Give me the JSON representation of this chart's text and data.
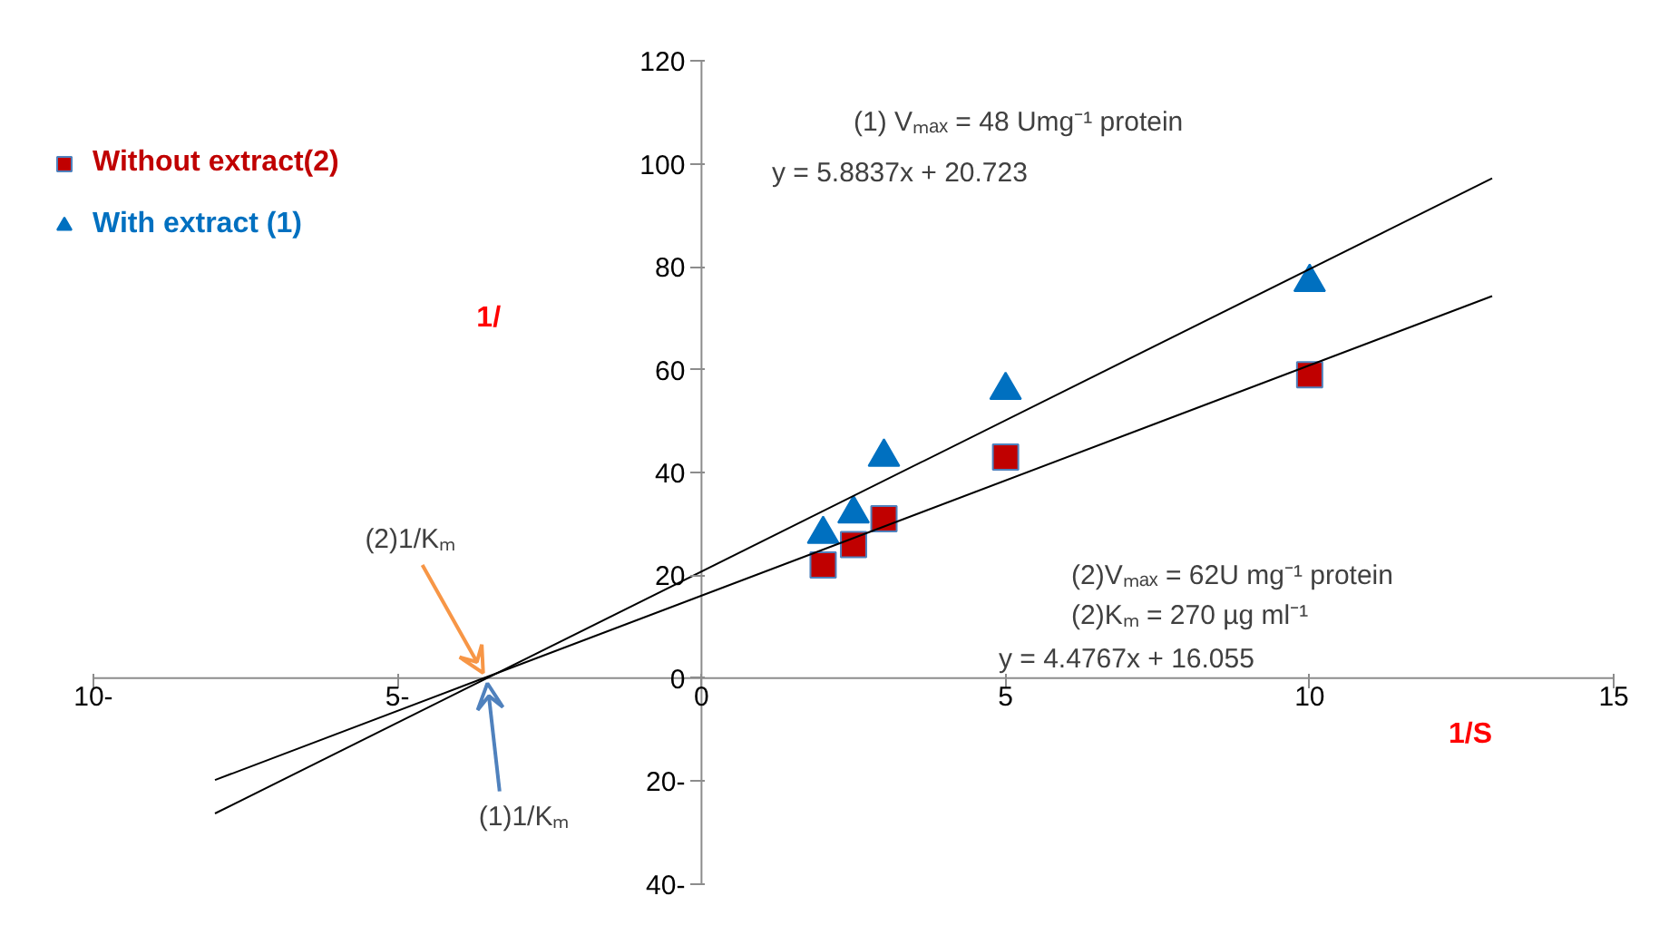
{
  "chart_data": {
    "type": "scatter",
    "xlabel": "1/S",
    "ylabel": "1/",
    "legend": "top left",
    "grid": false,
    "xlim": [
      -10,
      15
    ],
    "ylim": [
      -40,
      120
    ],
    "xticks": [
      {
        "value": -10,
        "label": "10-"
      },
      {
        "value": -5,
        "label": "5-"
      },
      0,
      5,
      10,
      15
    ],
    "yticks": [
      {
        "value": -40,
        "label": "40-"
      },
      {
        "value": -20,
        "label": "20-"
      },
      0,
      20,
      40,
      60,
      80,
      100,
      120
    ],
    "series": [
      {
        "name": "Without extract(2)",
        "color": "#c00000",
        "marker": "square",
        "x": [
          2,
          2.5,
          3,
          5,
          10
        ],
        "values": [
          22,
          26,
          31,
          43,
          59
        ]
      },
      {
        "name": "With extract (1)",
        "color": "#0070c0",
        "marker": "triangle",
        "x": [
          2,
          2.5,
          3,
          5,
          10
        ],
        "values": [
          28,
          32,
          43,
          56,
          77
        ]
      },
      {
        "type": "line",
        "color": "#000000",
        "x": [
          -8,
          13
        ],
        "values": [
          -26.3,
          97.2
        ]
      },
      {
        "type": "line",
        "color": "#000000",
        "x": [
          -8,
          13
        ],
        "values": [
          -19.8,
          74.3
        ]
      }
    ],
    "annotations": [
      {
        "text": "(2)1/Kₘ",
        "x": -3.59,
        "y": 0
      },
      {
        "text": "(1)1/Kₘ",
        "x": -3.52,
        "y": 0
      },
      "y = 5.8837x + 20.723",
      "(1) Vₘₐₓ = 48 Umg⁻¹ protein",
      "(2)Vₘₐₓ = 62U mg⁻¹ protein",
      "(2)Kₘ = 270 µg ml⁻¹",
      "y = 4.4767x + 16.055"
    ]
  }
}
